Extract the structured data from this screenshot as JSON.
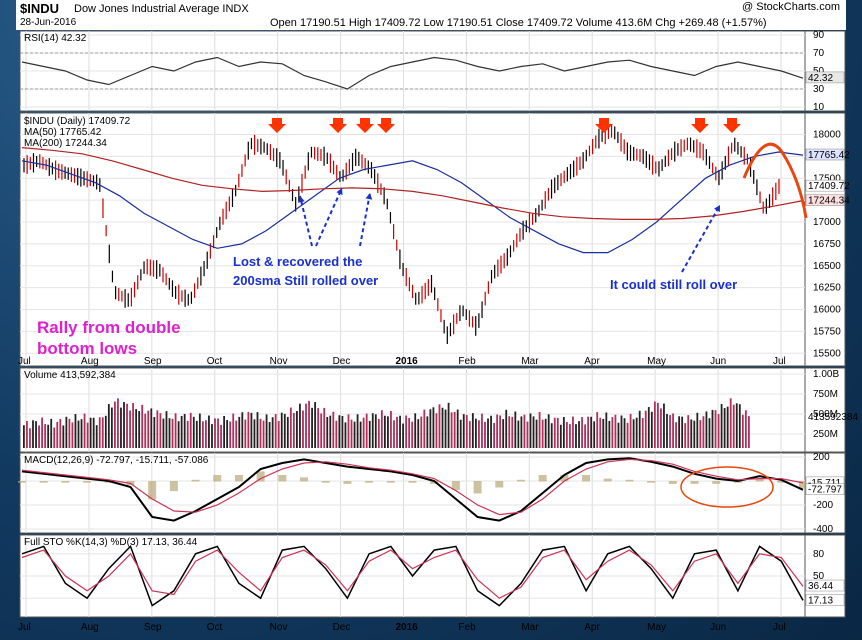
{
  "header": {
    "symbol": "$INDU",
    "name": "Dow Jones Industrial Average  INDX",
    "date": "28-Jun-2016",
    "credit": "@ StockCharts.com",
    "ohlc": "Open 17190.51  High 17409.72  Low 17190.51  Close 17409.72  Volume 413.6M  Chg +269.48 (+1.57%)"
  },
  "x_labels": [
    "Jul",
    "Aug",
    "Sep",
    "Oct",
    "Nov",
    "Dec",
    "2016",
    "Feb",
    "Mar",
    "Apr",
    "May",
    "Jun",
    "Jul"
  ],
  "annotations": {
    "lost_recovered": [
      "Lost & recovered the",
      "200sma Still rolled over"
    ],
    "could_roll": "It could still roll over",
    "rally": [
      "Rally from double",
      "bottom lows"
    ]
  },
  "chart_data": [
    {
      "type": "line",
      "title": "RSI(14) 42.32",
      "ylim": [
        10,
        90
      ],
      "y_ticks": [
        90,
        70,
        50,
        30,
        10
      ],
      "last_label": "42.32",
      "series": [
        {
          "name": "RSI(14)",
          "values": [
            60,
            55,
            50,
            40,
            35,
            45,
            55,
            50,
            60,
            65,
            55,
            60,
            58,
            45,
            38,
            30,
            45,
            55,
            60,
            65,
            62,
            55,
            50,
            55,
            58,
            50,
            55,
            60,
            62,
            55,
            50,
            45,
            55,
            60,
            55,
            50,
            42
          ]
        }
      ]
    },
    {
      "type": "line",
      "title": "$INDU (Daily) 17409.72",
      "ylim": [
        15400,
        18200
      ],
      "y_ticks": [
        18000,
        17750,
        17500,
        17250,
        17000,
        16750,
        16500,
        16250,
        16000,
        15750,
        15500
      ],
      "last_labels": [
        "17765.42",
        "17409.72",
        "17244.34"
      ],
      "series": [
        {
          "name": "$INDU (Daily)",
          "values": [
            17650,
            17700,
            17600,
            17550,
            17500,
            17450,
            16200,
            16100,
            16500,
            16450,
            16200,
            16100,
            16500,
            17000,
            17350,
            17900,
            17850,
            17700,
            17200,
            17800,
            17750,
            17500,
            17750,
            17600,
            17250,
            16500,
            16100,
            16300,
            15700,
            16000,
            15800,
            16400,
            16600,
            16900,
            17100,
            17400,
            17550,
            17700,
            17950,
            18050,
            17800,
            17750,
            17600,
            17800,
            17900,
            17800,
            17500,
            17900,
            17700,
            17140,
            17409.72
          ]
        },
        {
          "name": "MA(50) 17765.42",
          "values": [
            17700,
            17650,
            17550,
            17450,
            17300,
            17100,
            16950,
            16800,
            16700,
            16750,
            16900,
            17100,
            17300,
            17500,
            17600,
            17650,
            17700,
            17600,
            17450,
            17250,
            17050,
            16900,
            16750,
            16650,
            16650,
            16800,
            17000,
            17250,
            17500,
            17650,
            17750,
            17800,
            17765
          ]
        },
        {
          "name": "MA(200) 17244.34",
          "values": [
            17850,
            17820,
            17780,
            17700,
            17600,
            17500,
            17420,
            17380,
            17350,
            17360,
            17380,
            17390,
            17380,
            17350,
            17300,
            17230,
            17160,
            17100,
            17060,
            17040,
            17030,
            17030,
            17040,
            17070,
            17120,
            17180,
            17244
          ]
        }
      ]
    },
    {
      "type": "bar",
      "title": "Volume 413,592,384",
      "ylim": [
        0,
        1000
      ],
      "y_ticks": [
        "1.00B",
        "750M",
        "500M",
        "250M"
      ],
      "last_label": "413592384",
      "values": [
        300,
        350,
        320,
        380,
        400,
        350,
        620,
        550,
        500,
        450,
        400,
        420,
        380,
        360,
        400,
        450,
        380,
        420,
        500,
        600,
        450,
        400,
        380,
        420,
        450,
        380,
        400,
        500,
        550,
        420,
        400,
        380,
        450,
        400,
        420,
        380,
        350,
        360,
        420,
        400,
        380,
        450,
        600,
        400,
        380,
        420,
        500,
        620,
        414
      ]
    },
    {
      "type": "line",
      "title": "MACD(12,26,9) -72.797, -15.711, -57.086",
      "ylim": [
        -400,
        200
      ],
      "y_ticks": [
        200,
        0,
        -200,
        -400
      ],
      "last_labels": [
        "-15.711",
        "-72.797"
      ],
      "series": [
        {
          "name": "MACD(12,26,9)",
          "values": [
            80,
            60,
            40,
            20,
            0,
            -50,
            -300,
            -330,
            -250,
            -150,
            -50,
            100,
            150,
            180,
            150,
            120,
            100,
            80,
            50,
            0,
            -150,
            -300,
            -330,
            -250,
            -100,
            50,
            150,
            180,
            190,
            160,
            120,
            60,
            20,
            0,
            40,
            10,
            -73
          ]
        },
        {
          "name": "Signal",
          "values": [
            90,
            70,
            50,
            30,
            10,
            -20,
            -150,
            -250,
            -260,
            -200,
            -100,
            20,
            100,
            150,
            160,
            140,
            110,
            90,
            60,
            20,
            -80,
            -200,
            -280,
            -260,
            -150,
            0,
            100,
            160,
            180,
            170,
            140,
            80,
            40,
            10,
            20,
            20,
            -16
          ]
        }
      ]
    },
    {
      "type": "line",
      "title": "Full STO %K(14,3) %D(3) 17.13, 36.44",
      "ylim": [
        0,
        100
      ],
      "y_ticks": [
        80,
        50,
        20
      ],
      "last_labels": [
        "36.44",
        "17.13"
      ],
      "series": [
        {
          "name": "%K(14,3)",
          "values": [
            80,
            90,
            40,
            20,
            60,
            90,
            10,
            30,
            80,
            90,
            40,
            20,
            85,
            90,
            60,
            20,
            80,
            90,
            50,
            85,
            90,
            30,
            10,
            40,
            85,
            90,
            30,
            80,
            90,
            60,
            20,
            80,
            85,
            30,
            90,
            70,
            17
          ]
        },
        {
          "name": "%D(3)",
          "values": [
            75,
            85,
            50,
            30,
            50,
            80,
            30,
            25,
            70,
            85,
            55,
            30,
            75,
            85,
            65,
            30,
            70,
            85,
            60,
            75,
            85,
            45,
            20,
            35,
            75,
            85,
            45,
            70,
            85,
            65,
            30,
            70,
            80,
            40,
            80,
            75,
            36
          ]
        }
      ]
    }
  ]
}
